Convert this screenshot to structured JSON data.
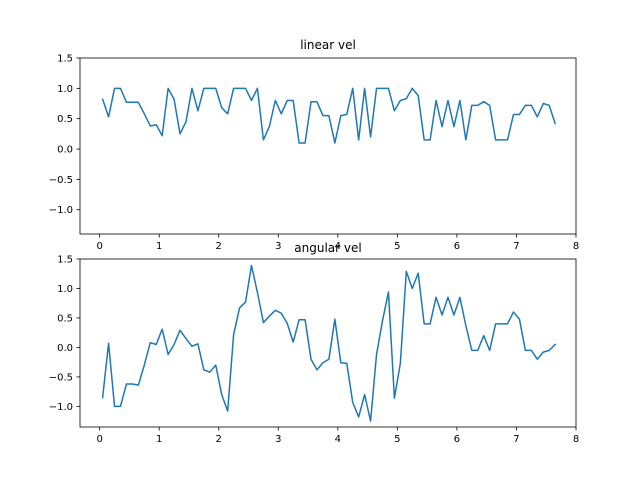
{
  "chart_data": [
    {
      "type": "line",
      "title": "linear vel",
      "xlabel": "",
      "ylabel": "",
      "xlim": [
        -0.33,
        8.0
      ],
      "ylim": [
        -1.4,
        1.5
      ],
      "xticks": [
        0,
        1,
        2,
        3,
        4,
        5,
        6,
        7,
        8
      ],
      "yticks": [
        -1.0,
        -0.5,
        0.0,
        0.5,
        1.0,
        1.5
      ],
      "xtick_labels": [
        "0",
        "1",
        "2",
        "3",
        "4",
        "5",
        "6",
        "7",
        "8"
      ],
      "ytick_labels": [
        "−1.0",
        "−0.5",
        "0.0",
        "0.5",
        "1.0",
        "1.5"
      ],
      "grid": false,
      "color": "#1f77b4",
      "series": [
        {
          "x": [
            0.05,
            0.15,
            0.25,
            0.35,
            0.45,
            0.55,
            0.65,
            0.75,
            0.85,
            0.95,
            1.05,
            1.15,
            1.25,
            1.35,
            1.45,
            1.55,
            1.65,
            1.75,
            1.85,
            1.95,
            2.05,
            2.15,
            2.25,
            2.35,
            2.45,
            2.55,
            2.65,
            2.75,
            2.85,
            2.95,
            3.05,
            3.15,
            3.25,
            3.35,
            3.45,
            3.55,
            3.65,
            3.75,
            3.85,
            3.95,
            4.05,
            4.15,
            4.25,
            4.35,
            4.45,
            4.55,
            4.65,
            4.75,
            4.85,
            4.95,
            5.05,
            5.15,
            5.25,
            5.35,
            5.45,
            5.55,
            5.65,
            5.75,
            5.85,
            5.95,
            6.05,
            6.15,
            6.25,
            6.35,
            6.45,
            6.55,
            6.65,
            6.75,
            6.85,
            6.95,
            7.05,
            7.15,
            7.25,
            7.35,
            7.45,
            7.55,
            7.65
          ],
          "values": [
            0.82,
            0.53,
            1.0,
            1.0,
            0.77,
            0.77,
            0.77,
            0.58,
            0.38,
            0.4,
            0.22,
            1.0,
            0.82,
            0.25,
            0.45,
            1.0,
            0.63,
            1.0,
            1.0,
            1.0,
            0.68,
            0.58,
            1.0,
            1.0,
            1.0,
            0.8,
            1.0,
            0.15,
            0.37,
            0.8,
            0.58,
            0.8,
            0.8,
            0.1,
            0.1,
            0.78,
            0.78,
            0.55,
            0.55,
            0.1,
            0.55,
            0.57,
            1.0,
            0.15,
            1.0,
            0.2,
            1.0,
            1.0,
            1.0,
            0.63,
            0.8,
            0.83,
            1.0,
            0.88,
            0.15,
            0.15,
            0.8,
            0.37,
            0.8,
            0.37,
            0.8,
            0.15,
            0.72,
            0.72,
            0.78,
            0.72,
            0.15,
            0.15,
            0.15,
            0.57,
            0.57,
            0.72,
            0.72,
            0.53,
            0.75,
            0.72,
            0.42
          ]
        }
      ]
    },
    {
      "type": "line",
      "title": "angular vel",
      "xlabel": "",
      "ylabel": "",
      "xlim": [
        -0.33,
        8.0
      ],
      "ylim": [
        -1.35,
        1.5
      ],
      "xticks": [
        0,
        1,
        2,
        3,
        4,
        5,
        6,
        7,
        8
      ],
      "yticks": [
        -1.0,
        -0.5,
        0.0,
        0.5,
        1.0,
        1.5
      ],
      "xtick_labels": [
        "0",
        "1",
        "2",
        "3",
        "4",
        "5",
        "6",
        "7",
        "8"
      ],
      "ytick_labels": [
        "−1.0",
        "−0.5",
        "0.0",
        "0.5",
        "1.0",
        "1.5"
      ],
      "grid": false,
      "color": "#1f77b4",
      "series": [
        {
          "x": [
            0.05,
            0.15,
            0.25,
            0.35,
            0.45,
            0.55,
            0.65,
            0.75,
            0.85,
            0.95,
            1.05,
            1.15,
            1.25,
            1.35,
            1.45,
            1.55,
            1.65,
            1.75,
            1.85,
            1.95,
            2.05,
            2.15,
            2.25,
            2.35,
            2.45,
            2.55,
            2.65,
            2.75,
            2.85,
            2.95,
            3.05,
            3.15,
            3.25,
            3.35,
            3.45,
            3.55,
            3.65,
            3.75,
            3.85,
            3.95,
            4.05,
            4.15,
            4.25,
            4.35,
            4.45,
            4.55,
            4.65,
            4.75,
            4.85,
            4.95,
            5.05,
            5.15,
            5.25,
            5.35,
            5.45,
            5.55,
            5.65,
            5.75,
            5.85,
            5.95,
            6.05,
            6.15,
            6.25,
            6.35,
            6.45,
            6.55,
            6.65,
            6.75,
            6.85,
            6.95,
            7.05,
            7.15,
            7.25,
            7.35,
            7.45,
            7.55,
            7.65
          ],
          "values": [
            -0.85,
            0.07,
            -1.0,
            -1.0,
            -0.62,
            -0.62,
            -0.64,
            -0.3,
            0.08,
            0.05,
            0.31,
            -0.12,
            0.05,
            0.29,
            0.15,
            0.02,
            0.06,
            -0.38,
            -0.42,
            -0.3,
            -0.8,
            -1.08,
            0.22,
            0.67,
            0.77,
            1.39,
            0.93,
            0.42,
            0.53,
            0.63,
            0.58,
            0.41,
            0.09,
            0.47,
            0.47,
            -0.2,
            -0.38,
            -0.26,
            -0.2,
            0.48,
            -0.26,
            -0.27,
            -0.93,
            -1.18,
            -0.8,
            -1.25,
            -0.12,
            0.45,
            0.94,
            -0.86,
            -0.27,
            1.29,
            1.0,
            1.26,
            0.4,
            0.4,
            0.85,
            0.55,
            0.85,
            0.55,
            0.85,
            0.37,
            -0.05,
            -0.05,
            0.2,
            -0.05,
            0.4,
            0.4,
            0.4,
            0.6,
            0.48,
            -0.05,
            -0.05,
            -0.2,
            -0.08,
            -0.05,
            0.05
          ]
        }
      ]
    }
  ]
}
